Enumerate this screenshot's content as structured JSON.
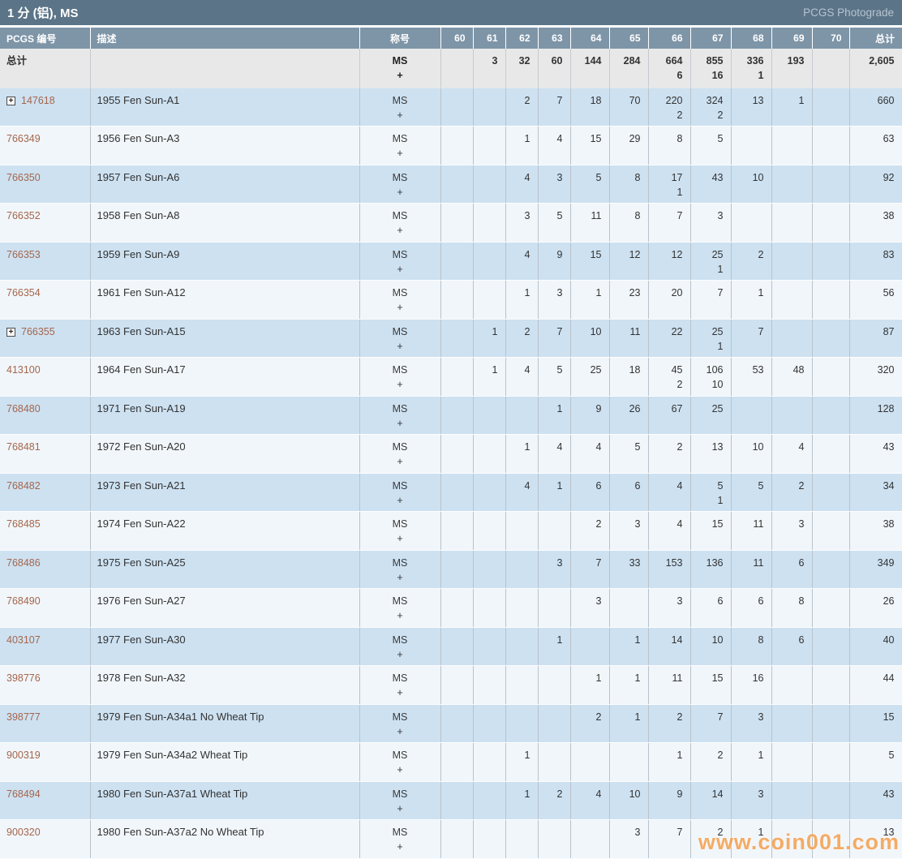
{
  "header": {
    "title": "1 分 (铝), MS",
    "photograde_link": "PCGS Photograde"
  },
  "icons": {
    "expand": "+"
  },
  "watermark": "www.coin001.com",
  "colors": {
    "title_bar": "#5b7487",
    "header_row": "#7e95a8",
    "totals_bg": "#e8e8e8",
    "row_blue": "#cde1f1",
    "row_light": "#f1f6fa",
    "border": "#b9c3cb",
    "link": "#a5664c",
    "watermark": "#f59940"
  },
  "table": {
    "columns": [
      "PCGS 编号",
      "描述",
      "称号",
      "60",
      "61",
      "62",
      "63",
      "64",
      "65",
      "66",
      "67",
      "68",
      "69",
      "70",
      "总计"
    ],
    "designation": {
      "ms": "MS",
      "plus": "+"
    },
    "totals": {
      "label": "总计",
      "grades": [
        [],
        [
          "3"
        ],
        [
          "32"
        ],
        [
          "60"
        ],
        [
          "144"
        ],
        [
          "284"
        ],
        [
          "664",
          "6"
        ],
        [
          "855",
          "16"
        ],
        [
          "336",
          "1"
        ],
        [
          "193"
        ],
        []
      ],
      "total": "2,605"
    },
    "rows": [
      {
        "pcgs": "147618",
        "expand": true,
        "desc": "1955 Fen Sun-A1",
        "grades": [
          [],
          [],
          [
            "2"
          ],
          [
            "7"
          ],
          [
            "18"
          ],
          [
            "70"
          ],
          [
            "220",
            "2"
          ],
          [
            "324",
            "2"
          ],
          [
            "13"
          ],
          [
            "1"
          ],
          []
        ],
        "total": "660"
      },
      {
        "pcgs": "766349",
        "expand": false,
        "desc": "1956 Fen Sun-A3",
        "grades": [
          [],
          [],
          [
            "1"
          ],
          [
            "4"
          ],
          [
            "15"
          ],
          [
            "29"
          ],
          [
            "8"
          ],
          [
            "5"
          ],
          [],
          [],
          []
        ],
        "total": "63"
      },
      {
        "pcgs": "766350",
        "expand": false,
        "desc": "1957 Fen Sun-A6",
        "grades": [
          [],
          [],
          [
            "4"
          ],
          [
            "3"
          ],
          [
            "5"
          ],
          [
            "8"
          ],
          [
            "17",
            "1"
          ],
          [
            "43"
          ],
          [
            "10"
          ],
          [],
          []
        ],
        "total": "92"
      },
      {
        "pcgs": "766352",
        "expand": false,
        "desc": "1958 Fen Sun-A8",
        "grades": [
          [],
          [],
          [
            "3"
          ],
          [
            "5"
          ],
          [
            "11"
          ],
          [
            "8"
          ],
          [
            "7"
          ],
          [
            "3"
          ],
          [],
          [],
          []
        ],
        "total": "38"
      },
      {
        "pcgs": "766353",
        "expand": false,
        "desc": "1959 Fen Sun-A9",
        "grades": [
          [],
          [],
          [
            "4"
          ],
          [
            "9"
          ],
          [
            "15"
          ],
          [
            "12"
          ],
          [
            "12"
          ],
          [
            "25",
            "1"
          ],
          [
            "2"
          ],
          [],
          []
        ],
        "total": "83"
      },
      {
        "pcgs": "766354",
        "expand": false,
        "desc": "1961 Fen Sun-A12",
        "grades": [
          [],
          [],
          [
            "1"
          ],
          [
            "3"
          ],
          [
            "1"
          ],
          [
            "23"
          ],
          [
            "20"
          ],
          [
            "7"
          ],
          [
            "1"
          ],
          [],
          []
        ],
        "total": "56"
      },
      {
        "pcgs": "766355",
        "expand": true,
        "desc": "1963 Fen Sun-A15",
        "grades": [
          [],
          [
            "1"
          ],
          [
            "2"
          ],
          [
            "7"
          ],
          [
            "10"
          ],
          [
            "11"
          ],
          [
            "22"
          ],
          [
            "25",
            "1"
          ],
          [
            "7"
          ],
          [],
          []
        ],
        "total": "87"
      },
      {
        "pcgs": "413100",
        "expand": false,
        "desc": "1964 Fen Sun-A17",
        "grades": [
          [],
          [
            "1"
          ],
          [
            "4"
          ],
          [
            "5"
          ],
          [
            "25"
          ],
          [
            "18"
          ],
          [
            "45",
            "2"
          ],
          [
            "106",
            "10"
          ],
          [
            "53"
          ],
          [
            "48"
          ],
          []
        ],
        "total": "320"
      },
      {
        "pcgs": "768480",
        "expand": false,
        "desc": "1971 Fen Sun-A19",
        "grades": [
          [],
          [],
          [],
          [
            "1"
          ],
          [
            "9"
          ],
          [
            "26"
          ],
          [
            "67"
          ],
          [
            "25"
          ],
          [],
          [],
          []
        ],
        "total": "128"
      },
      {
        "pcgs": "768481",
        "expand": false,
        "desc": "1972 Fen Sun-A20",
        "grades": [
          [],
          [],
          [
            "1"
          ],
          [
            "4"
          ],
          [
            "4"
          ],
          [
            "5"
          ],
          [
            "2"
          ],
          [
            "13"
          ],
          [
            "10"
          ],
          [
            "4"
          ],
          []
        ],
        "total": "43"
      },
      {
        "pcgs": "768482",
        "expand": false,
        "desc": "1973 Fen Sun-A21",
        "grades": [
          [],
          [],
          [
            "4"
          ],
          [
            "1"
          ],
          [
            "6"
          ],
          [
            "6"
          ],
          [
            "4"
          ],
          [
            "5",
            "1"
          ],
          [
            "5"
          ],
          [
            "2"
          ],
          []
        ],
        "total": "34"
      },
      {
        "pcgs": "768485",
        "expand": false,
        "desc": "1974 Fen Sun-A22",
        "grades": [
          [],
          [],
          [],
          [],
          [
            "2"
          ],
          [
            "3"
          ],
          [
            "4"
          ],
          [
            "15"
          ],
          [
            "11"
          ],
          [
            "3"
          ],
          []
        ],
        "total": "38"
      },
      {
        "pcgs": "768486",
        "expand": false,
        "desc": "1975 Fen Sun-A25",
        "grades": [
          [],
          [],
          [],
          [
            "3"
          ],
          [
            "7"
          ],
          [
            "33"
          ],
          [
            "153"
          ],
          [
            "136"
          ],
          [
            "11"
          ],
          [
            "6"
          ],
          []
        ],
        "total": "349"
      },
      {
        "pcgs": "768490",
        "expand": false,
        "desc": "1976 Fen Sun-A27",
        "grades": [
          [],
          [],
          [],
          [],
          [
            "3"
          ],
          [],
          [
            "3"
          ],
          [
            "6"
          ],
          [
            "6"
          ],
          [
            "8"
          ],
          []
        ],
        "total": "26"
      },
      {
        "pcgs": "403107",
        "expand": false,
        "desc": "1977 Fen Sun-A30",
        "grades": [
          [],
          [],
          [],
          [
            "1"
          ],
          [],
          [
            "1"
          ],
          [
            "14"
          ],
          [
            "10"
          ],
          [
            "8"
          ],
          [
            "6"
          ],
          []
        ],
        "total": "40"
      },
      {
        "pcgs": "398776",
        "expand": false,
        "desc": "1978 Fen Sun-A32",
        "grades": [
          [],
          [],
          [],
          [],
          [
            "1"
          ],
          [
            "1"
          ],
          [
            "11"
          ],
          [
            "15"
          ],
          [
            "16"
          ],
          [],
          []
        ],
        "total": "44"
      },
      {
        "pcgs": "398777",
        "expand": false,
        "desc": "1979 Fen Sun-A34a1 No Wheat Tip",
        "grades": [
          [],
          [],
          [],
          [],
          [
            "2"
          ],
          [
            "1"
          ],
          [
            "2"
          ],
          [
            "7"
          ],
          [
            "3"
          ],
          [],
          []
        ],
        "total": "15"
      },
      {
        "pcgs": "900319",
        "expand": false,
        "desc": "1979 Fen Sun-A34a2 Wheat Tip",
        "grades": [
          [],
          [],
          [
            "1"
          ],
          [],
          [],
          [],
          [
            "1"
          ],
          [
            "2"
          ],
          [
            "1"
          ],
          [],
          []
        ],
        "total": "5"
      },
      {
        "pcgs": "768494",
        "expand": false,
        "desc": "1980 Fen Sun-A37a1 Wheat Tip",
        "grades": [
          [],
          [],
          [
            "1"
          ],
          [
            "2"
          ],
          [
            "4"
          ],
          [
            "10"
          ],
          [
            "9"
          ],
          [
            "14"
          ],
          [
            "3"
          ],
          [],
          []
        ],
        "total": "43"
      },
      {
        "pcgs": "900320",
        "expand": false,
        "desc": "1980 Fen Sun-A37a2 No Wheat Tip",
        "grades": [
          [],
          [],
          [],
          [],
          [],
          [
            "3"
          ],
          [
            "7"
          ],
          [
            "2"
          ],
          [
            "1"
          ],
          [],
          []
        ],
        "total": "13"
      }
    ]
  }
}
